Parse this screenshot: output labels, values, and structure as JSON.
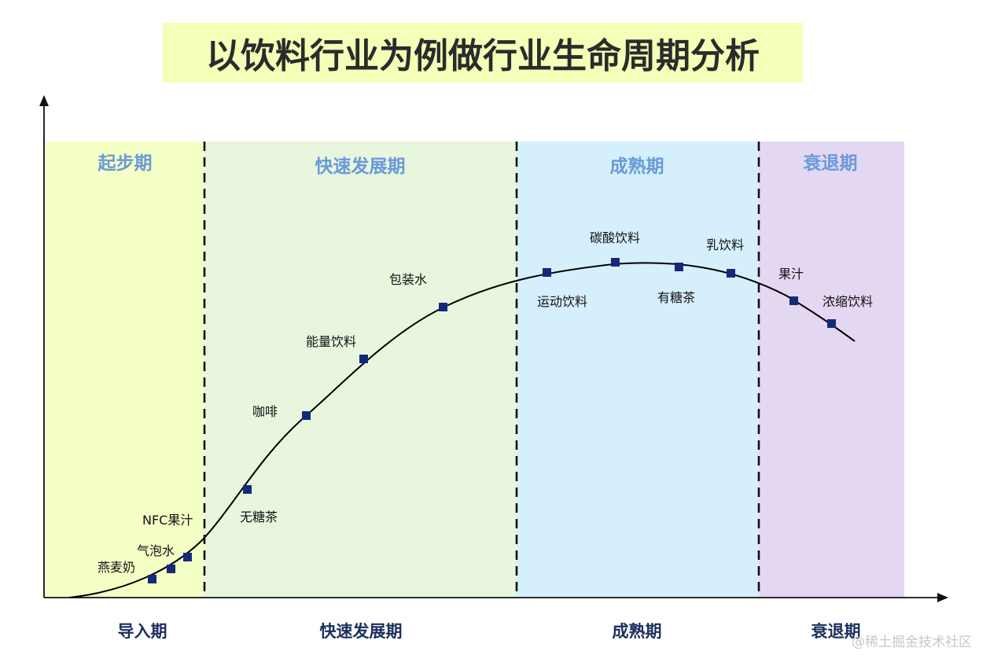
{
  "title": "以饮料行业为例做行业生命周期分析",
  "stages": [
    {
      "top_label": "起步期",
      "bottom_label": "导入期",
      "color": "#f4ffc6"
    },
    {
      "top_label": "快速发展期",
      "bottom_label": "快速发展期",
      "color": "#e8f6de"
    },
    {
      "top_label": "成熟期",
      "bottom_label": "成熟期",
      "color": "#d6effd"
    },
    {
      "top_label": "衰退期",
      "bottom_label": "衰退期",
      "color": "#e4d7f2"
    }
  ],
  "products": [
    {
      "label": "燕麦奶"
    },
    {
      "label": "气泡水"
    },
    {
      "label": "NFC果汁"
    },
    {
      "label": "无糖茶"
    },
    {
      "label": "咖啡"
    },
    {
      "label": "能量饮料"
    },
    {
      "label": "包装水"
    },
    {
      "label": "运动饮料"
    },
    {
      "label": "碳酸饮料"
    },
    {
      "label": "有糖茶"
    },
    {
      "label": "乳饮料"
    },
    {
      "label": "果汁"
    },
    {
      "label": "浓缩饮料"
    }
  ],
  "watermark": "@稀土掘金技术社区",
  "colors": {
    "marker": "#132a7a",
    "curve": "#000000",
    "stage_label": "#6a9ad8",
    "bottom_label": "#1b2f5e"
  }
}
